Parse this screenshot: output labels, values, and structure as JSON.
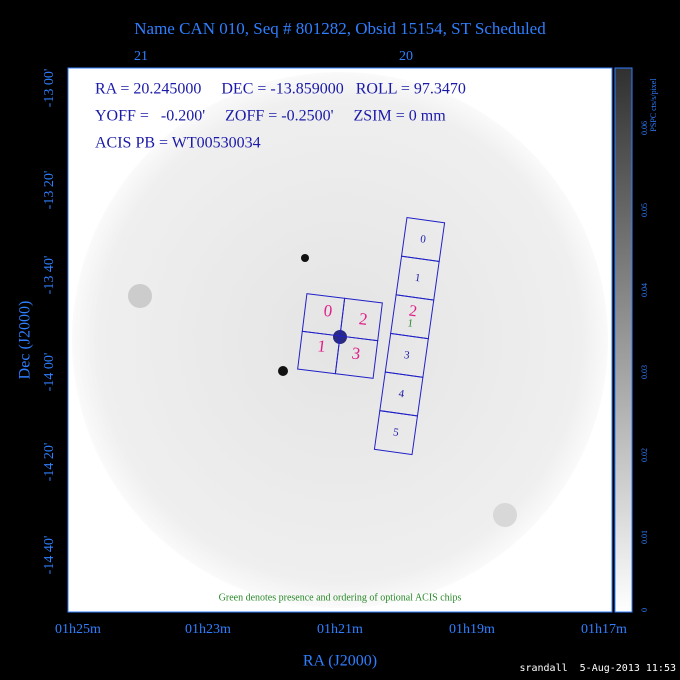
{
  "header": {
    "title": "Name CAN 010, Seq # 801282, Obsid 15154, ST Scheduled"
  },
  "top_axis": {
    "labels": [
      "21",
      "20"
    ]
  },
  "left_axis": {
    "title": "Dec (J2000)",
    "labels": [
      "-13 00'",
      "-13 20'",
      "-13 40'",
      "-14 00'",
      "-14 20'",
      "-14 40'"
    ]
  },
  "bottom_axis": {
    "title": "RA (J2000)",
    "labels": [
      "01h25m",
      "01h23m",
      "01h21m",
      "01h19m",
      "01h17m"
    ]
  },
  "info": {
    "lines": [
      "RA = 20.245000     DEC = -13.859000   ROLL = 97.3470",
      "YOFF =   -0.200'     ZOFF = -0.2500'     ZSIM = 0 mm",
      "ACIS PB = WT00530034"
    ]
  },
  "acis_i": {
    "chips": [
      "0",
      "2",
      "1",
      "3"
    ]
  },
  "acis_s": {
    "chips": [
      "0",
      "1",
      "2",
      "3",
      "4",
      "5"
    ],
    "selected_label": "2",
    "optional_label": "1"
  },
  "note": "Green denotes presence and ordering of optional ACIS chips",
  "colorbar": {
    "title": "PSPC cts/s/pixel",
    "labels": [
      "0",
      "0.01",
      "0.02",
      "0.03",
      "0.04",
      "0.05",
      "0.06"
    ]
  },
  "footer": "srandall  5-Aug-2013 11:53"
}
